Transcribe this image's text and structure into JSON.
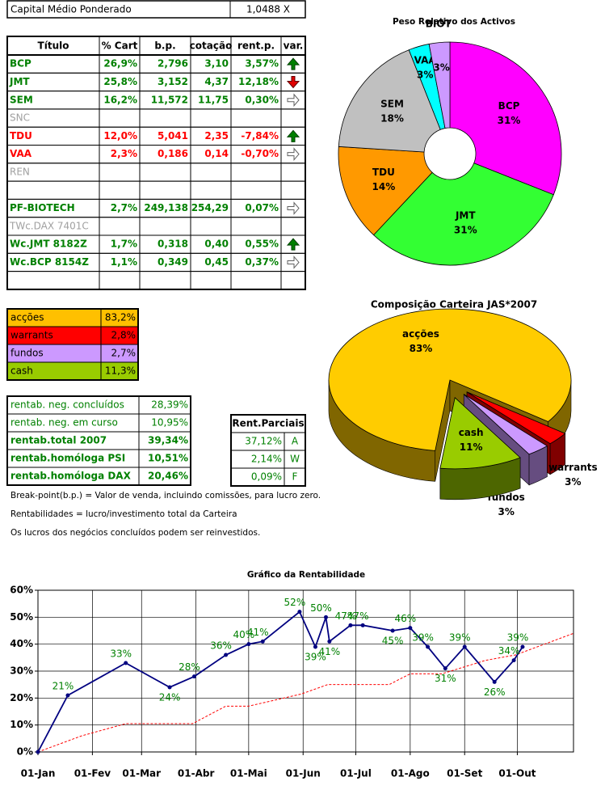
{
  "header": {
    "label": "Capital Médio Ponderado",
    "value": "1,0488 X"
  },
  "positions": {
    "columns": [
      "Título",
      "% Cart",
      "b.p.",
      "cotação",
      "rent.p.",
      "var."
    ],
    "rows": [
      {
        "cells": [
          "BCP",
          "26,9%",
          "2,796",
          "3,10",
          "3,57%"
        ],
        "color": "#008000",
        "bold": true,
        "arrow": "up"
      },
      {
        "cells": [
          "JMT",
          "25,8%",
          "3,152",
          "4,37",
          "12,18%"
        ],
        "color": "#008000",
        "bold": true,
        "arrow": "down"
      },
      {
        "cells": [
          "SEM",
          "16,2%",
          "11,572",
          "11,75",
          "0,30%"
        ],
        "color": "#008000",
        "bold": true,
        "arrow": "right"
      },
      {
        "cells": [
          "SNC"
        ],
        "color": "#a0a0a0",
        "bold": false
      },
      {
        "cells": [
          "TDU",
          "12,0%",
          "5,041",
          "2,35",
          "-7,84%"
        ],
        "color": "#ff0000",
        "bold": true,
        "arrow": "up"
      },
      {
        "cells": [
          "VAA",
          "2,3%",
          "0,186",
          "0,14",
          "-0,70%"
        ],
        "color": "#ff0000",
        "bold": true,
        "arrow": "right"
      },
      {
        "cells": [
          "REN"
        ],
        "color": "#a0a0a0",
        "bold": false
      },
      {
        "cells": []
      },
      {
        "cells": [
          "PF-BIOTECH",
          "2,7%",
          "249,138",
          "254,29",
          "0,07%"
        ],
        "color": "#008000",
        "bold": true,
        "arrow": "right"
      },
      {
        "cells": [
          "TWc.DAX 7401C"
        ],
        "color": "#a0a0a0",
        "bold": false
      },
      {
        "cells": [
          "Wc.JMT 8182Z",
          "1,7%",
          "0,318",
          "0,40",
          "0,55%"
        ],
        "color": "#008000",
        "bold": true,
        "arrow": "up"
      },
      {
        "cells": [
          "Wc.BCP 8154Z",
          "1,1%",
          "0,349",
          "0,45",
          "0,37%"
        ],
        "color": "#008000",
        "bold": true,
        "arrow": "right"
      },
      {
        "cells": []
      }
    ]
  },
  "allocation": {
    "rows": [
      {
        "label": "acções",
        "value": "83,2%",
        "color": "#ffc000"
      },
      {
        "label": "warrants",
        "value": "2,8%",
        "color": "#ff0000"
      },
      {
        "label": "fundos",
        "value": "2,7%",
        "color": "#cc99ff"
      },
      {
        "label": "cash",
        "value": "11,3%",
        "color": "#99cc00"
      }
    ]
  },
  "returns": {
    "rows": [
      {
        "label": "rentab. neg. concluídos",
        "value": "28,39%",
        "bold": false
      },
      {
        "label": "rentab. neg. em curso",
        "value": "10,95%",
        "bold": false
      },
      {
        "label": "rentab.total 2007",
        "value": "39,34%",
        "bold": true
      },
      {
        "label": "rentab.homóloga PSI",
        "value": "10,51%",
        "bold": true
      },
      {
        "label": "rentab.homóloga DAX",
        "value": "20,46%",
        "bold": true
      }
    ],
    "partial": {
      "title": "Rent.Parciais",
      "rows": [
        {
          "value": "37,12%",
          "code": "A"
        },
        {
          "value": "2,14%",
          "code": "W"
        },
        {
          "value": "0,09%",
          "code": "F"
        }
      ]
    }
  },
  "notes": [
    "Break-point(b.p.) = Valor de venda, incluindo comissões, para lucro zero.",
    "Rentabilidades = lucro/investimento total da Carteira",
    "Os lucros dos negócios concluídos podem ser reinvestidos."
  ],
  "chart_data": [
    {
      "type": "pie",
      "title": "Peso Relativo dos Activos",
      "donut": true,
      "categories": [
        "BCP",
        "JMT",
        "TDU",
        "SEM",
        "VAA",
        "BIOT"
      ],
      "values": [
        31,
        31,
        14,
        18,
        3,
        3
      ],
      "value_labels": [
        "31%",
        "31%",
        "14%",
        "18%",
        "3%",
        "3%"
      ],
      "colors": [
        "#ff00ff",
        "#33ff33",
        "#ff9900",
        "#c0c0c0",
        "#00ffff",
        "#cc99ff"
      ]
    },
    {
      "type": "pie3d",
      "title": "Composição Carteira JAS*2007",
      "explode": true,
      "categories": [
        "acções",
        "warrants",
        "fundos",
        "cash"
      ],
      "values": [
        83,
        3,
        3,
        11
      ],
      "value_labels": [
        "83%",
        "3%",
        "3%",
        "11%"
      ],
      "colors": [
        "#ffcc00",
        "#ff0000",
        "#cc99ff",
        "#99cc00"
      ]
    },
    {
      "type": "line",
      "title": "Gráfico da Rentabilidade",
      "grid": true,
      "xlim": [
        0,
        305
      ],
      "xticks": [
        {
          "value": 0,
          "label": "01-Jan"
        },
        {
          "value": 31,
          "label": "01-Fev"
        },
        {
          "value": 59,
          "label": "01-Mar"
        },
        {
          "value": 90,
          "label": "01-Abr"
        },
        {
          "value": 120,
          "label": "01-Mai"
        },
        {
          "value": 151,
          "label": "01-Jun"
        },
        {
          "value": 181,
          "label": "01-Jul"
        },
        {
          "value": 212,
          "label": "01-Ago"
        },
        {
          "value": 243,
          "label": "01-Set"
        },
        {
          "value": 273,
          "label": "01-Out"
        }
      ],
      "ylim": [
        0,
        60
      ],
      "yticks": [
        {
          "value": 0,
          "label": "0%"
        },
        {
          "value": 10,
          "label": "10%"
        },
        {
          "value": 20,
          "label": "20%"
        },
        {
          "value": 30,
          "label": "30%"
        },
        {
          "value": 40,
          "label": "40%"
        },
        {
          "value": 50,
          "label": "50%"
        },
        {
          "value": 60,
          "label": "60%"
        }
      ],
      "series": [
        {
          "color": "#000080",
          "markers": true,
          "label_color": "#008000",
          "x": [
            0,
            17,
            50,
            75,
            89,
            107,
            120,
            128,
            149,
            158,
            164,
            166,
            178,
            185,
            202,
            212,
            222,
            232,
            243,
            260,
            271,
            276
          ],
          "values": [
            0,
            21,
            33,
            24,
            28,
            36,
            40,
            41,
            52,
            39,
            50,
            41,
            47,
            47,
            45,
            46,
            39,
            31,
            39,
            26,
            34,
            39
          ],
          "value_labels": [
            null,
            "21%",
            "33%",
            "24%",
            "28%",
            "36%",
            "40%",
            "41%",
            "52%",
            "39%",
            "50%",
            "41%",
            "47%",
            "47%",
            "45%",
            "46%",
            "39%",
            "31%",
            "39%",
            "26%",
            "34%",
            "39%"
          ]
        },
        {
          "color": "#ff0000",
          "dashed": true,
          "x": [
            0,
            25,
            50,
            88,
            107,
            120,
            150,
            165,
            200,
            212,
            230,
            255,
            272,
            305
          ],
          "values": [
            0,
            6,
            10.5,
            10.5,
            17,
            17,
            21.5,
            25,
            25,
            29,
            29,
            34,
            36,
            44
          ]
        }
      ]
    }
  ]
}
